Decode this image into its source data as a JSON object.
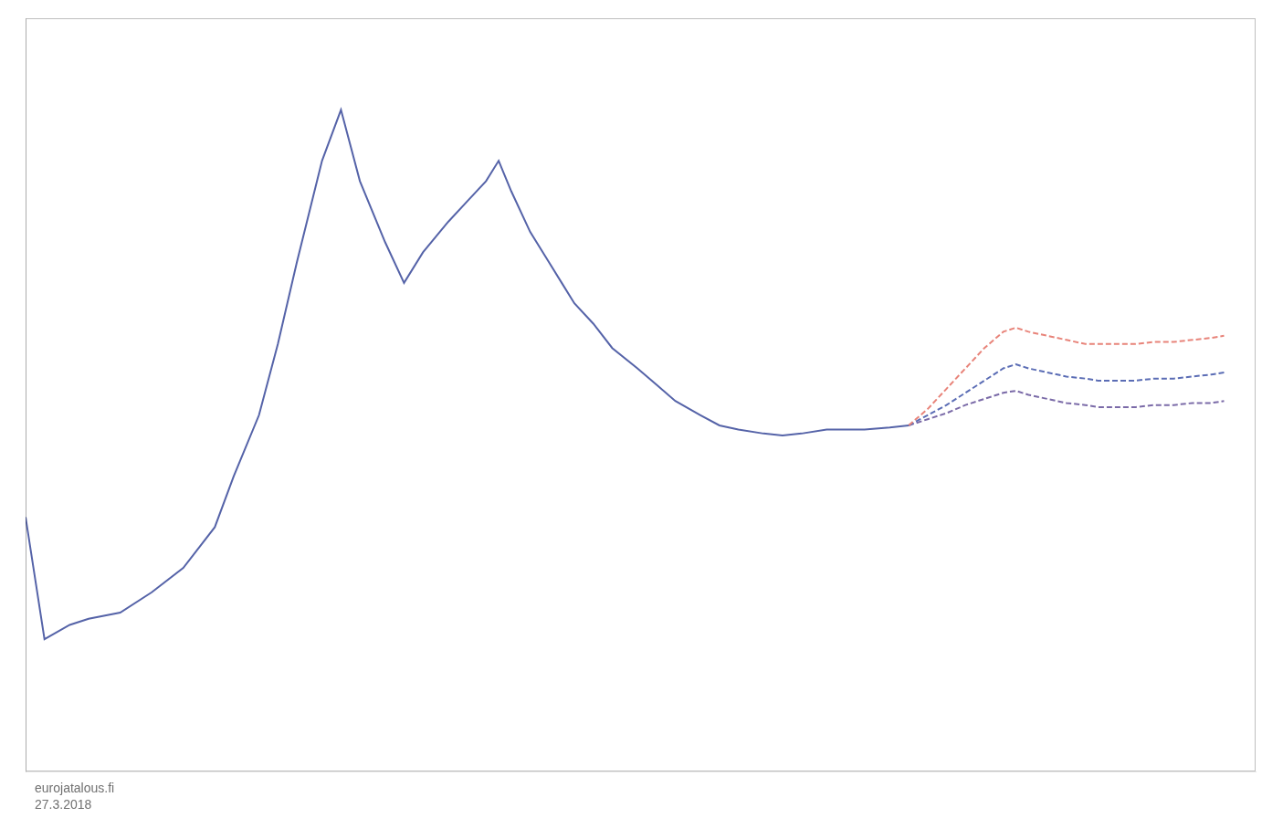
{
  "chart_data": {
    "type": "line",
    "xlim": [
      2004.0,
      2023.5
    ],
    "ylim": [
      0.3,
      4.0
    ],
    "tick_labels": false,
    "grid": false,
    "annotation": "eurojatalous.fi\n27.3.2018",
    "series": [
      {
        "color": "#5563A8",
        "line_style": "solid",
        "x": [
          2004.0,
          2004.3,
          2004.7,
          2005.0,
          2005.5,
          2006.0,
          2006.5,
          2007.0,
          2007.3,
          2007.7,
          2008.0,
          2008.3,
          2008.7,
          2009.0,
          2009.3,
          2009.7,
          2010.0,
          2010.3,
          2010.7,
          2011.0,
          2011.3,
          2011.5,
          2011.7,
          2012.0,
          2012.3,
          2012.5,
          2012.7,
          2013.0,
          2013.3,
          2013.7,
          2014.0,
          2014.3,
          2014.7,
          2015.0,
          2015.3,
          2015.7,
          2016.0,
          2016.3,
          2016.7,
          2017.0,
          2017.3,
          2017.7,
          2018.0
        ],
        "values": [
          1.55,
          0.95,
          1.02,
          1.05,
          1.08,
          1.18,
          1.3,
          1.5,
          1.75,
          2.05,
          2.4,
          2.8,
          3.3,
          3.55,
          3.2,
          2.9,
          2.7,
          2.85,
          3.0,
          3.1,
          3.2,
          3.3,
          3.15,
          2.95,
          2.8,
          2.7,
          2.6,
          2.5,
          2.38,
          2.28,
          2.2,
          2.12,
          2.05,
          2.0,
          1.98,
          1.96,
          1.95,
          1.96,
          1.98,
          1.98,
          1.98,
          1.99,
          2.0
        ]
      },
      {
        "color": "#E8847A",
        "line_style": "dashed",
        "x": [
          2018.0,
          2018.3,
          2018.6,
          2018.9,
          2019.2,
          2019.5,
          2019.7,
          2019.9,
          2020.2,
          2020.5,
          2020.8,
          2021.0,
          2021.3,
          2021.6,
          2021.9,
          2022.2,
          2022.5,
          2022.8,
          2023.0
        ],
        "values": [
          2.0,
          2.08,
          2.18,
          2.28,
          2.38,
          2.46,
          2.48,
          2.46,
          2.44,
          2.42,
          2.4,
          2.4,
          2.4,
          2.4,
          2.41,
          2.41,
          2.42,
          2.43,
          2.44
        ]
      },
      {
        "color": "#5B6DB5",
        "line_style": "dashed",
        "x": [
          2018.0,
          2018.3,
          2018.6,
          2018.9,
          2019.2,
          2019.5,
          2019.7,
          2019.9,
          2020.2,
          2020.5,
          2020.8,
          2021.0,
          2021.3,
          2021.6,
          2021.9,
          2022.2,
          2022.5,
          2022.8,
          2023.0
        ],
        "values": [
          2.0,
          2.05,
          2.1,
          2.16,
          2.22,
          2.28,
          2.3,
          2.28,
          2.26,
          2.24,
          2.23,
          2.22,
          2.22,
          2.22,
          2.23,
          2.23,
          2.24,
          2.25,
          2.26
        ]
      },
      {
        "color": "#7B6BA8",
        "line_style": "dashed",
        "x": [
          2018.0,
          2018.3,
          2018.6,
          2018.9,
          2019.2,
          2019.5,
          2019.7,
          2019.9,
          2020.2,
          2020.5,
          2020.8,
          2021.0,
          2021.3,
          2021.6,
          2021.9,
          2022.2,
          2022.5,
          2022.8,
          2023.0
        ],
        "values": [
          2.0,
          2.03,
          2.06,
          2.1,
          2.13,
          2.16,
          2.17,
          2.15,
          2.13,
          2.11,
          2.1,
          2.09,
          2.09,
          2.09,
          2.1,
          2.1,
          2.11,
          2.11,
          2.12
        ]
      }
    ]
  }
}
